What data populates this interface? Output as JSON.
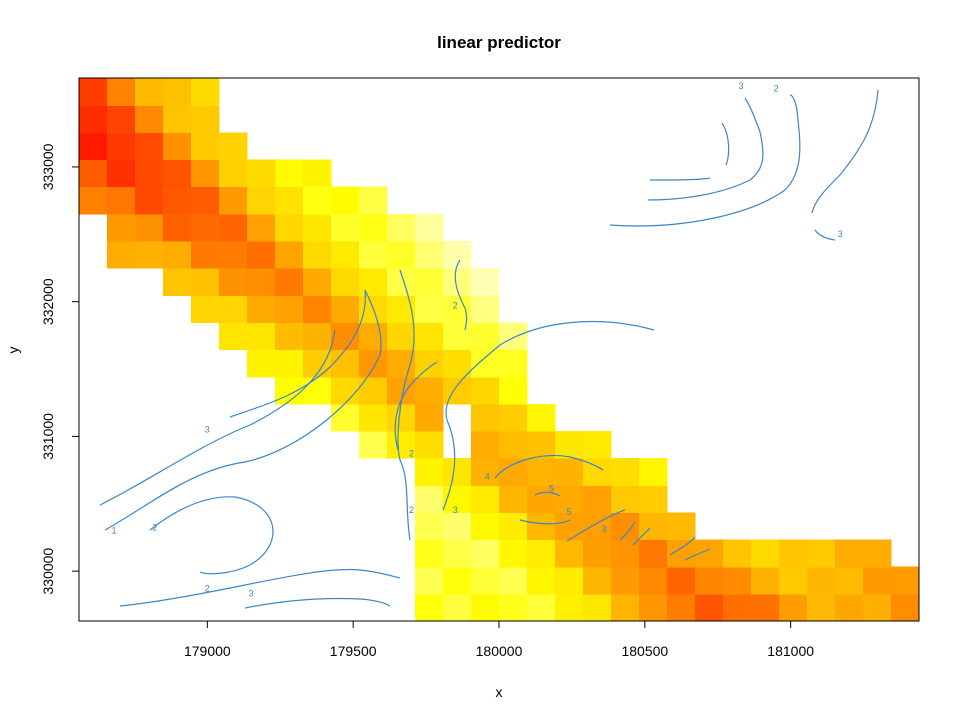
{
  "chart_data": {
    "type": "heatmap",
    "title": "linear predictor",
    "xlabel": "x",
    "ylabel": "y",
    "xlim": [
      178560,
      181440
    ],
    "ylim": [
      329630,
      333660
    ],
    "x_ticks": [
      179000,
      179500,
      180000,
      180500,
      181000
    ],
    "y_ticks": [
      330000,
      331000,
      332000,
      333000
    ],
    "x_tick_labels": [
      "179000",
      "179500",
      "180000",
      "180500",
      "181000"
    ],
    "y_tick_labels": [
      "330000",
      "331000",
      "332000",
      "333000"
    ],
    "grid": false,
    "legend": "none",
    "color_scale": {
      "low": "#ff0000",
      "mid_low": "#ff6600",
      "mid": "#ffb300",
      "mid_high": "#ffff00",
      "high": "#ffffcc"
    },
    "contour_color": "#3a87c9",
    "contour_labels": [
      {
        "text": "1",
        "x": 178680,
        "y": 330280
      },
      {
        "text": "2",
        "x": 178820,
        "y": 330300
      },
      {
        "text": "3",
        "x": 179000,
        "y": 331030
      },
      {
        "text": "2",
        "x": 179000,
        "y": 329850
      },
      {
        "text": "3",
        "x": 179150,
        "y": 329810
      },
      {
        "text": "2",
        "x": 179700,
        "y": 330850
      },
      {
        "text": "2",
        "x": 179700,
        "y": 330430
      },
      {
        "text": "3",
        "x": 179850,
        "y": 330430
      },
      {
        "text": "2",
        "x": 179850,
        "y": 331950
      },
      {
        "text": "4",
        "x": 179960,
        "y": 330680
      },
      {
        "text": "5",
        "x": 180180,
        "y": 330590
      },
      {
        "text": "5",
        "x": 180240,
        "y": 330420
      },
      {
        "text": "3",
        "x": 180360,
        "y": 330290
      },
      {
        "text": "3",
        "x": 181170,
        "y": 332480
      },
      {
        "text": "2",
        "x": 180950,
        "y": 333560
      },
      {
        "text": "3",
        "x": 180830,
        "y": 333580
      }
    ]
  }
}
